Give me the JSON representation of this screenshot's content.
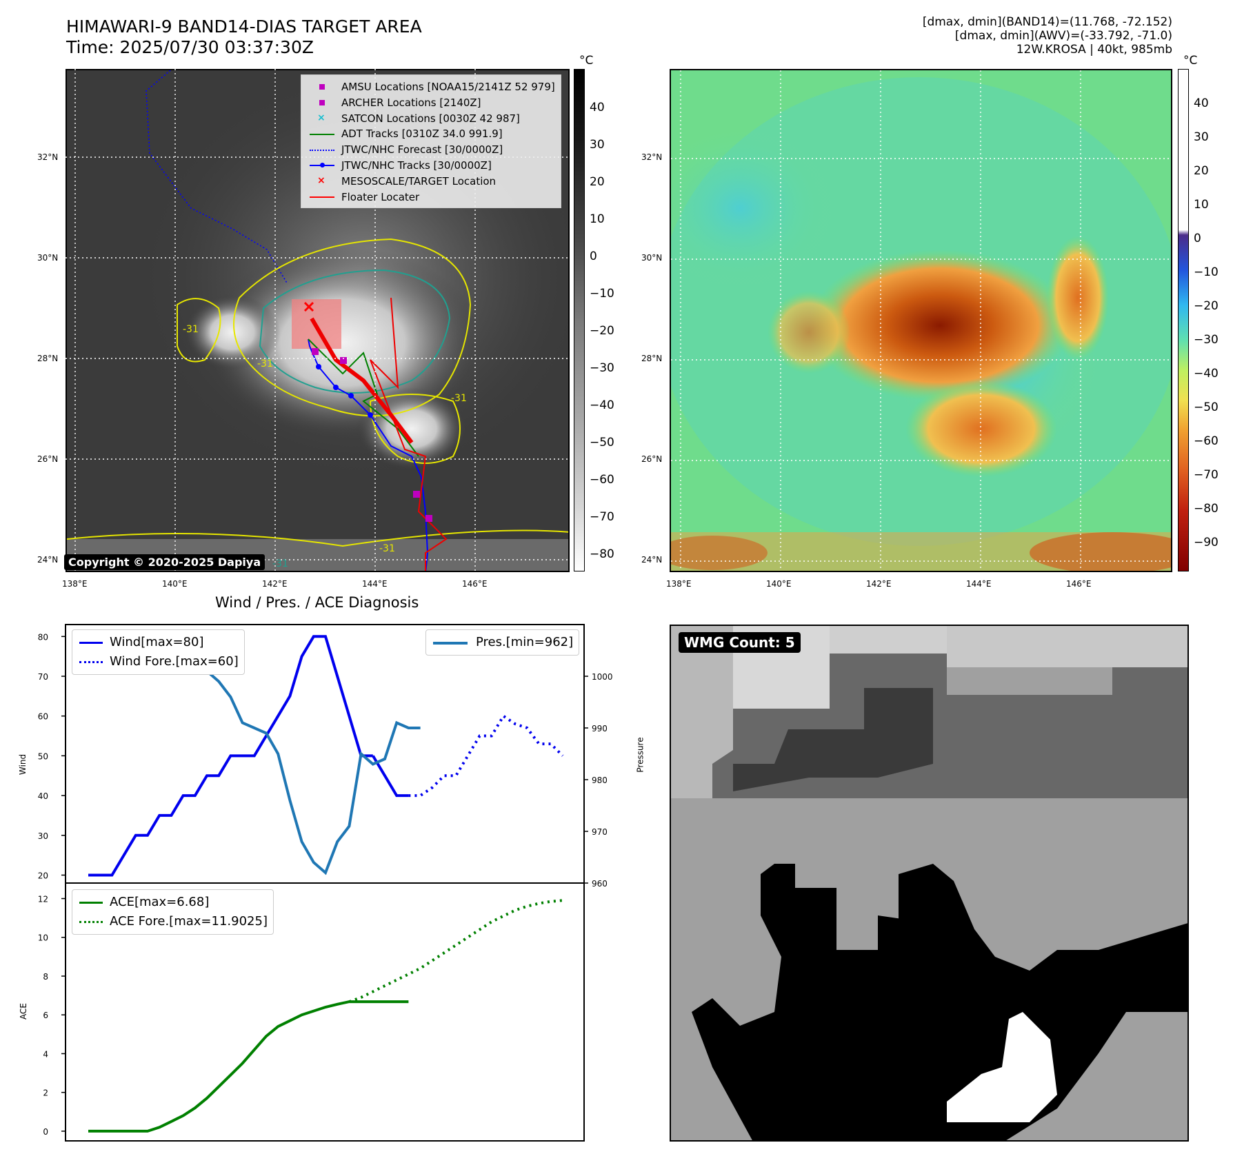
{
  "header": {
    "title_line1": "HIMAWARI-9 BAND14-DIAS TARGET AREA",
    "title_line2": "Time: 2025/07/30 03:37:30Z",
    "stats_line1": "[dmax, dmin](BAND14)=(11.768, -72.152)",
    "stats_line2": "[dmax, dmin](AWV)=(-33.792, -71.0)",
    "stats_line3": "12W.KROSA | 40kt, 985mb"
  },
  "map": {
    "lat_labels": [
      "32°N",
      "30°N",
      "28°N",
      "26°N",
      "24°N"
    ],
    "lon_labels": [
      "138°E",
      "140°E",
      "142°E",
      "144°E",
      "146°E"
    ],
    "copyright": "Copyright © 2020-2025 Dapiya",
    "contour_labels": [
      "-31",
      "-31",
      "-31",
      "-31",
      "-31"
    ]
  },
  "colorbar_left": {
    "unit": "°C",
    "ticks": [
      "40",
      "30",
      "20",
      "10",
      "0",
      "−10",
      "−20",
      "−30",
      "−40",
      "−50",
      "−60",
      "−70",
      "−80"
    ]
  },
  "colorbar_right": {
    "unit": "°C",
    "ticks": [
      "40",
      "30",
      "20",
      "10",
      "0",
      "−10",
      "−20",
      "−30",
      "−40",
      "−50",
      "−60",
      "−70",
      "−80",
      "−90"
    ]
  },
  "map_legend": [
    {
      "label": "AMSU Locations [NOAA15/2141Z 52 979]",
      "marker": "square",
      "color": "#bf00bf"
    },
    {
      "label": "ARCHER Locations [2140Z]",
      "marker": "square",
      "color": "#bf00bf"
    },
    {
      "label": "SATCON Locations [0030Z 42 987]",
      "marker": "x",
      "color": "#17becf"
    },
    {
      "label": "ADT Tracks [0310Z 34.0 991.9]",
      "marker": "line",
      "color": "#008000"
    },
    {
      "label": "JTWC/NHC Forecast [30/0000Z]",
      "marker": "dotted",
      "color": "#0000ff"
    },
    {
      "label": "JTWC/NHC Tracks [30/0000Z]",
      "marker": "line-dot",
      "color": "#0000ff"
    },
    {
      "label": "MESOSCALE/TARGET Location",
      "marker": "x",
      "color": "#ff0000"
    },
    {
      "label": "Floater Locater",
      "marker": "line",
      "color": "#ff0000"
    }
  ],
  "diagnosis": {
    "title": "Wind / Pres. / ACE Diagnosis",
    "wind_ylabel": "Wind",
    "pressure_ylabel": "Pressure",
    "ace_ylabel": "ACE",
    "legend_wind": "Wind[max=80]",
    "legend_wind_fore": "Wind Fore.[max=60]",
    "legend_pres": "Pres.[min=962]",
    "legend_ace": "ACE[max=6.68]",
    "legend_ace_fore": "ACE Fore.[max=11.9025]",
    "wind_ticks": [
      "80",
      "70",
      "60",
      "50",
      "40",
      "30",
      "20"
    ],
    "pressure_ticks": [
      "1000",
      "990",
      "980",
      "970",
      "960"
    ],
    "ace_ticks": [
      "12",
      "10",
      "8",
      "6",
      "4",
      "2",
      "0"
    ]
  },
  "wmg": {
    "badge": "WMG Count: 5"
  },
  "chart_data": [
    {
      "type": "line",
      "panel": "wind_pressure",
      "x": [
        0,
        1,
        2,
        3,
        4,
        5,
        6,
        7,
        8,
        9,
        10,
        11,
        12,
        13,
        14,
        15,
        16,
        17,
        18,
        19,
        20,
        21,
        22,
        23,
        24,
        25,
        26,
        27,
        28,
        29,
        30,
        31,
        32,
        33,
        34,
        35,
        36,
        37,
        38,
        39,
        40
      ],
      "series": [
        {
          "name": "Wind[max=80]",
          "axis": "left",
          "color": "#0000ee",
          "style": "solid",
          "x": [
            0,
            1,
            2,
            3,
            4,
            5,
            6,
            7,
            8,
            9,
            10,
            11,
            12,
            13,
            14,
            15,
            16,
            17,
            18,
            19,
            20,
            21,
            22,
            23,
            24
          ],
          "values": [
            20,
            20,
            20,
            25,
            30,
            30,
            35,
            35,
            40,
            40,
            45,
            45,
            50,
            50,
            50,
            55,
            60,
            65,
            75,
            80,
            80,
            70,
            60,
            50,
            50
          ]
        },
        {
          "name": "",
          "axis": "left",
          "color": "#0000ee",
          "style": "solid",
          "x": [
            24,
            25,
            26,
            27
          ],
          "values": [
            50,
            45,
            40,
            40
          ]
        },
        {
          "name": "Wind Fore.[max=60]",
          "axis": "left",
          "color": "#0000ee",
          "style": "dotted",
          "x": [
            27,
            28,
            29,
            30,
            31,
            32,
            33,
            34,
            35,
            36,
            37,
            38,
            39,
            40
          ],
          "values": [
            40,
            40,
            42,
            45,
            45,
            50,
            55,
            55,
            60,
            58,
            57,
            53,
            53,
            50
          ]
        },
        {
          "name": "Pres.[min=962]",
          "axis": "right",
          "color": "#1f77b4",
          "style": "solid",
          "x": [
            0,
            1,
            2,
            3,
            4,
            5,
            6,
            7,
            8,
            9,
            10,
            11,
            12,
            13,
            14,
            15,
            16,
            17,
            18,
            19,
            20,
            21,
            22,
            23,
            24,
            25,
            26,
            27,
            28
          ],
          "values": [
            1008,
            1008,
            1008,
            1006,
            1005,
            1004,
            1004,
            1002,
            1002,
            1001,
            1001,
            999,
            996,
            991,
            990,
            989,
            985,
            976,
            968,
            964,
            962,
            968,
            971,
            985,
            983,
            984,
            991,
            990,
            990
          ]
        }
      ],
      "ylim_left": [
        18,
        83
      ],
      "ylim_right": [
        960,
        1010
      ]
    },
    {
      "type": "line",
      "panel": "ace",
      "series": [
        {
          "name": "ACE[max=6.68]",
          "color": "#008000",
          "style": "solid",
          "x": [
            0,
            1,
            2,
            3,
            4,
            5,
            6,
            7,
            8,
            9,
            10,
            11,
            12,
            13,
            14,
            15,
            16,
            17,
            18,
            19,
            20,
            21,
            22,
            23,
            24,
            25,
            26,
            27
          ],
          "values": [
            0,
            0,
            0,
            0,
            0,
            0,
            0.2,
            0.5,
            0.8,
            1.2,
            1.7,
            2.3,
            2.9,
            3.5,
            4.2,
            4.9,
            5.4,
            5.7,
            6.0,
            6.2,
            6.4,
            6.55,
            6.68,
            6.68,
            6.68,
            6.68,
            6.68,
            6.68
          ]
        },
        {
          "name": "ACE Fore.[max=11.9025]",
          "color": "#008000",
          "style": "dotted",
          "x": [
            22,
            23,
            24,
            25,
            26,
            27,
            28,
            29,
            30,
            31,
            32,
            33,
            34,
            35,
            36,
            37,
            38,
            39,
            40
          ],
          "values": [
            6.68,
            6.9,
            7.2,
            7.5,
            7.8,
            8.1,
            8.4,
            8.8,
            9.2,
            9.6,
            10.0,
            10.4,
            10.8,
            11.1,
            11.4,
            11.6,
            11.75,
            11.85,
            11.9025
          ]
        }
      ],
      "ylim": [
        -0.5,
        12.8
      ]
    }
  ]
}
